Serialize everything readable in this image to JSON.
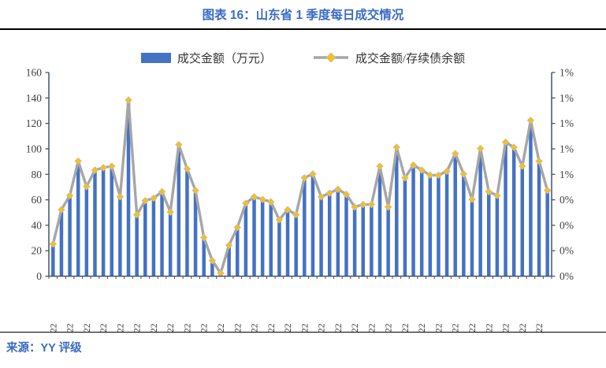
{
  "header": {
    "title": "图表 16：山东省 1 季度每日成交情况"
  },
  "legend": {
    "bar_label": "成交金额（万元）",
    "line_label": "成交金额/存续债余额"
  },
  "footer": {
    "source": "来源：YY 评级"
  },
  "colors": {
    "title_blue": "#3a6bc5",
    "bar_blue": "#4472c4",
    "line_gray": "#a6a6a6",
    "marker_gold": "#ffc000",
    "marker_edge": "#bfbfbf",
    "axis_line": "#44546a",
    "tick_text": "#404040",
    "rule_black": "#000000"
  },
  "chart_data": {
    "type": "bar",
    "title": "图表 16：山东省 1 季度每日成交情况",
    "xlabel": "",
    "ylabel_left": "成交金额（万元）",
    "ylabel_right": "成交金额/存续债余额",
    "grid": false,
    "legend_position": "top-center",
    "categories": [
      "1/4/22",
      "1/5/22",
      "1/6/22",
      "1/7/22",
      "1/10/22",
      "1/11/22",
      "1/12/22",
      "1/13/22",
      "1/14/22",
      "1/17/22",
      "1/18/22",
      "1/19/22",
      "1/20/22",
      "1/21/22",
      "1/24/22",
      "1/25/22",
      "1/26/22",
      "1/27/22",
      "1/28/22",
      "1/29/22",
      "1/30/22",
      "2/7/22",
      "2/8/22",
      "2/9/22",
      "2/10/22",
      "2/11/22",
      "2/14/22",
      "2/15/22",
      "2/16/22",
      "2/17/22",
      "2/18/22",
      "2/21/22",
      "2/22/22",
      "2/23/22",
      "2/24/22",
      "2/25/22",
      "2/28/22",
      "3/1/22",
      "3/2/22",
      "3/3/22",
      "3/4/22",
      "3/7/22",
      "3/8/22",
      "3/9/22",
      "3/10/22",
      "3/11/22",
      "3/14/22",
      "3/15/22",
      "3/16/22",
      "3/17/22",
      "3/18/22",
      "3/21/22",
      "3/22/22",
      "3/23/22",
      "3/24/22",
      "3/25/22",
      "3/28/22",
      "3/29/22",
      "3/30/22",
      "3/31/22"
    ],
    "x_tick_label_every": 2,
    "series": [
      {
        "name": "成交金额（万元）",
        "type": "bar",
        "axis": "left",
        "values": [
          25,
          52,
          63,
          90,
          70,
          83,
          85,
          86,
          62,
          138,
          48,
          59,
          61,
          66,
          50,
          103,
          84,
          67,
          30,
          12,
          2,
          24,
          38,
          57,
          62,
          60,
          58,
          44,
          52,
          48,
          77,
          80,
          62,
          65,
          68,
          64,
          54,
          56,
          56,
          86,
          54,
          101,
          77,
          87,
          83,
          79,
          79,
          82,
          96,
          80,
          60,
          100,
          66,
          63,
          105,
          101,
          86,
          122,
          90,
          67
        ]
      },
      {
        "name": "成交金额/存续债余额",
        "type": "line",
        "axis": "right",
        "unit": "%",
        "values": [
          0.156,
          0.325,
          0.394,
          0.563,
          0.438,
          0.519,
          0.531,
          0.538,
          0.388,
          0.863,
          0.3,
          0.369,
          0.381,
          0.413,
          0.313,
          0.644,
          0.525,
          0.419,
          0.188,
          0.075,
          0.013,
          0.15,
          0.238,
          0.356,
          0.388,
          0.375,
          0.363,
          0.275,
          0.325,
          0.3,
          0.481,
          0.5,
          0.388,
          0.406,
          0.425,
          0.4,
          0.338,
          0.35,
          0.35,
          0.538,
          0.338,
          0.631,
          0.481,
          0.544,
          0.519,
          0.494,
          0.494,
          0.513,
          0.6,
          0.5,
          0.375,
          0.625,
          0.413,
          0.394,
          0.656,
          0.631,
          0.538,
          0.763,
          0.563,
          0.419
        ]
      }
    ],
    "left_axis": {
      "min": 0,
      "max": 160,
      "step": 20,
      "tick_labels": [
        "0",
        "20",
        "40",
        "60",
        "80",
        "100",
        "120",
        "140",
        "160"
      ]
    },
    "right_axis": {
      "min": 0,
      "max": 1,
      "tick_labels_bottom_to_top": [
        "0%",
        "0%",
        "0%",
        "0%",
        "1%",
        "1%",
        "1%",
        "1%",
        "1%"
      ]
    }
  }
}
